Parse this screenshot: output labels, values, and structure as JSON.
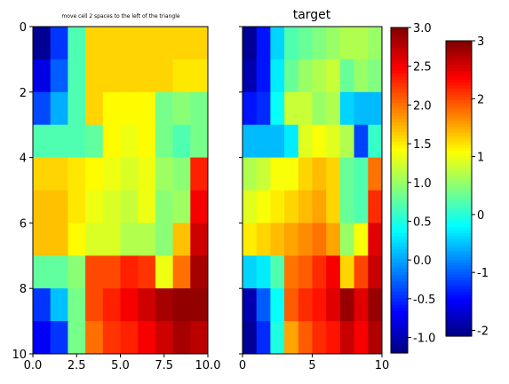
{
  "chart_data": [
    {
      "type": "heatmap",
      "title": "move cell 2 spaces to the left of the triangle",
      "xticks": [
        "0.0",
        "2.5",
        "5.0",
        "7.5",
        "10.0"
      ],
      "yticks": [
        "0",
        "2",
        "4",
        "6",
        "8",
        "10"
      ],
      "x_range": [
        0,
        10
      ],
      "y_range": [
        10,
        0
      ],
      "colormap": "jet",
      "value_range": [
        -2.1,
        3.0
      ],
      "grid": [
        [
          -2.0,
          -1.2,
          0.2,
          1.3,
          1.3,
          1.3,
          1.3,
          1.3,
          1.3,
          1.3
        ],
        [
          -1.6,
          -1.0,
          0.2,
          1.3,
          1.3,
          1.3,
          1.3,
          1.3,
          1.2,
          1.2
        ],
        [
          -1.1,
          -0.6,
          0.2,
          1.3,
          1.1,
          1.1,
          1.1,
          0.4,
          0.5,
          0.4
        ],
        [
          0.2,
          0.2,
          0.2,
          0.3,
          1.1,
          1.0,
          1.1,
          0.4,
          0.2,
          0.4
        ],
        [
          1.3,
          1.3,
          1.2,
          1.1,
          1.0,
          0.9,
          1.0,
          0.6,
          0.5,
          2.2
        ],
        [
          1.4,
          1.4,
          1.2,
          1.0,
          0.9,
          0.8,
          1.0,
          0.5,
          0.6,
          2.4
        ],
        [
          1.4,
          1.4,
          1.1,
          0.9,
          0.9,
          0.7,
          0.7,
          0.5,
          1.4,
          2.6
        ],
        [
          0.3,
          0.3,
          0.5,
          2.0,
          2.0,
          2.2,
          2.1,
          1.0,
          1.8,
          2.8
        ],
        [
          -1.2,
          -0.5,
          0.4,
          2.0,
          2.2,
          2.4,
          2.6,
          2.8,
          2.9,
          2.9
        ],
        [
          -1.5,
          -1.2,
          0.4,
          1.8,
          2.1,
          2.2,
          2.4,
          2.6,
          2.8,
          2.7
        ]
      ]
    },
    {
      "type": "heatmap",
      "title": "target",
      "xticks": [
        "0",
        "5",
        "10"
      ],
      "x_range": [
        0,
        10
      ],
      "y_range": [
        10,
        0
      ],
      "colormap": "jet",
      "value_range": [
        -1.2,
        3.0
      ],
      "grid": [
        [
          -1.1,
          -0.6,
          0.2,
          0.7,
          0.8,
          0.9,
          1.0,
          1.1,
          1.1,
          1.0
        ],
        [
          -1.0,
          -0.6,
          0.3,
          0.8,
          1.0,
          1.1,
          1.2,
          0.8,
          1.0,
          0.9
        ],
        [
          -0.6,
          -0.5,
          0.4,
          1.2,
          1.2,
          1.0,
          1.1,
          0.2,
          0.1,
          0.1
        ],
        [
          0.1,
          0.1,
          0.1,
          0.3,
          1.3,
          1.4,
          1.3,
          1.1,
          -0.4,
          0.6
        ],
        [
          1.1,
          1.2,
          1.4,
          1.4,
          1.6,
          1.7,
          1.6,
          0.8,
          0.7,
          2.0
        ],
        [
          1.3,
          1.4,
          1.5,
          1.6,
          1.7,
          1.8,
          1.6,
          0.8,
          0.7,
          2.3
        ],
        [
          1.5,
          1.6,
          1.7,
          1.8,
          1.9,
          2.0,
          1.8,
          1.0,
          1.4,
          2.6
        ],
        [
          0.2,
          0.3,
          0.7,
          2.0,
          2.1,
          2.3,
          2.5,
          1.6,
          2.2,
          2.7
        ],
        [
          -1.0,
          -0.3,
          0.4,
          2.1,
          2.3,
          2.4,
          2.6,
          2.9,
          2.6,
          2.9
        ],
        [
          -1.1,
          -0.5,
          0.5,
          1.8,
          2.1,
          2.3,
          2.4,
          2.7,
          2.5,
          2.8
        ]
      ]
    }
  ],
  "colorbars": [
    {
      "range": [
        -1.2,
        3.0
      ],
      "ticks": [
        "-1.0",
        "-0.5",
        "0.0",
        "0.5",
        "1.0",
        "1.5",
        "2.0",
        "2.5",
        "3.0"
      ],
      "tick_values": [
        -1.0,
        -0.5,
        0.0,
        0.5,
        1.0,
        1.5,
        2.0,
        2.5,
        3.0
      ]
    },
    {
      "range": [
        -2.1,
        3.0
      ],
      "ticks": [
        "-2",
        "-1",
        "0",
        "1",
        "2",
        "3"
      ],
      "tick_values": [
        -2,
        -1,
        0,
        1,
        2,
        3
      ]
    }
  ]
}
